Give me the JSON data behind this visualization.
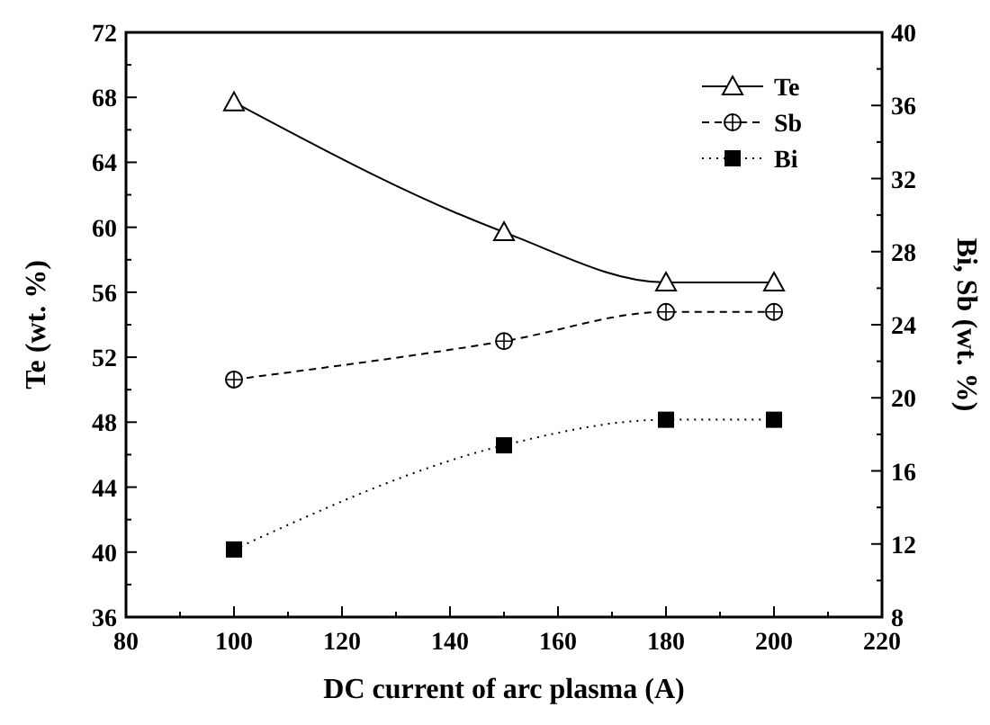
{
  "chart_data": {
    "type": "line",
    "xlabel": "DC current of arc plasma (A)",
    "ylabel": "Te (wt. %)",
    "y2label": "Bi, Sb (wt. %)",
    "x": [
      100,
      150,
      180,
      200
    ],
    "xlim": [
      80,
      220
    ],
    "xticks": [
      80,
      {
        "value": 90,
        "label": null
      },
      100,
      {
        "value": 110,
        "label": null
      },
      120,
      {
        "value": 130,
        "label": null
      },
      140,
      {
        "value": 150,
        "label": null
      },
      160,
      {
        "value": 170,
        "label": null
      },
      180,
      {
        "value": 190,
        "label": null
      },
      200,
      {
        "value": 210,
        "label": null
      },
      220
    ],
    "ylim": [
      36,
      72
    ],
    "yticks": [
      36,
      {
        "value": 38,
        "label": null
      },
      40,
      {
        "value": 42,
        "label": null
      },
      44,
      {
        "value": 46,
        "label": null
      },
      48,
      {
        "value": 50,
        "label": null
      },
      52,
      {
        "value": 54,
        "label": null
      },
      56,
      {
        "value": 58,
        "label": null
      },
      60,
      {
        "value": 62,
        "label": null
      },
      64,
      {
        "value": 66,
        "label": null
      },
      68,
      {
        "value": 70,
        "label": null
      },
      72
    ],
    "y2lim": [
      8,
      40
    ],
    "y2ticks": [
      8,
      {
        "value": 10,
        "label": null
      },
      12,
      {
        "value": 14,
        "label": null
      },
      16,
      {
        "value": 18,
        "label": null
      },
      20,
      {
        "value": 22,
        "label": null
      },
      24,
      {
        "value": 26,
        "label": null
      },
      28,
      {
        "value": 30,
        "label": null
      },
      32,
      {
        "value": 34,
        "label": null
      },
      36,
      {
        "value": 38,
        "label": null
      },
      40
    ],
    "legend": "top right",
    "grid": false,
    "series": [
      {
        "name": "Te",
        "color": "#000000",
        "values": [
          67.7,
          59.7,
          56.6,
          56.6
        ],
        "marker": "triangle",
        "line_style": "solid"
      },
      {
        "name": "Sb",
        "color": "#000000",
        "values": [
          21.0,
          23.1,
          24.7,
          24.7
        ],
        "axis": "y2",
        "marker": "circle",
        "line_style": "dashed"
      },
      {
        "name": "Bi",
        "color": "#000000",
        "values": [
          11.7,
          17.4,
          18.8,
          18.8
        ],
        "axis": "y2",
        "marker": "square",
        "line_style": "dotted"
      }
    ]
  }
}
